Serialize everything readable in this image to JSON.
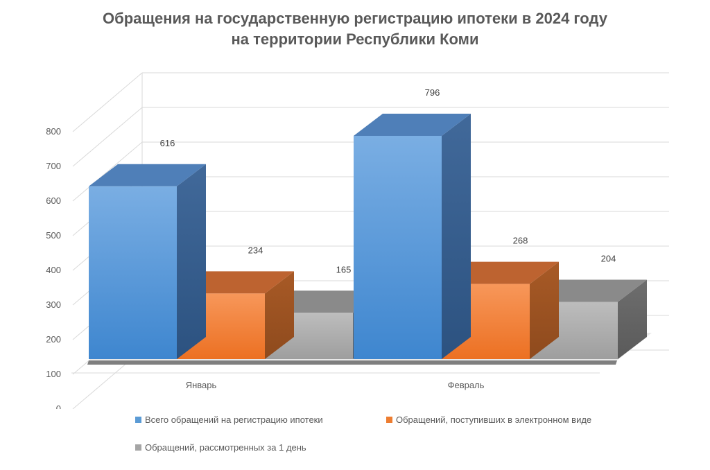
{
  "chart_data": {
    "type": "bar",
    "title_line1": "Обращения на государственную регистрацию ипотеки в 2024 году",
    "title_line2": "на территории Республики Коми",
    "categories": [
      "Январь",
      "Февраль"
    ],
    "series": [
      {
        "name": "Всего обращений на регистрацию ипотеки",
        "values": [
          616,
          796
        ],
        "color": "#5B9BD5"
      },
      {
        "name": "Обращений, поступивших в электронном виде",
        "values": [
          234,
          268
        ],
        "color": "#ED7D31"
      },
      {
        "name": "Обращений, рассмотренных за 1 день",
        "values": [
          165,
          204
        ],
        "color": "#A5A5A5"
      }
    ],
    "ylim": [
      0,
      800
    ],
    "yticks": [
      "0",
      "100",
      "200",
      "300",
      "400",
      "500",
      "600",
      "700",
      "800"
    ],
    "grid": true,
    "legend_position": "bottom",
    "style": "3d-column"
  }
}
